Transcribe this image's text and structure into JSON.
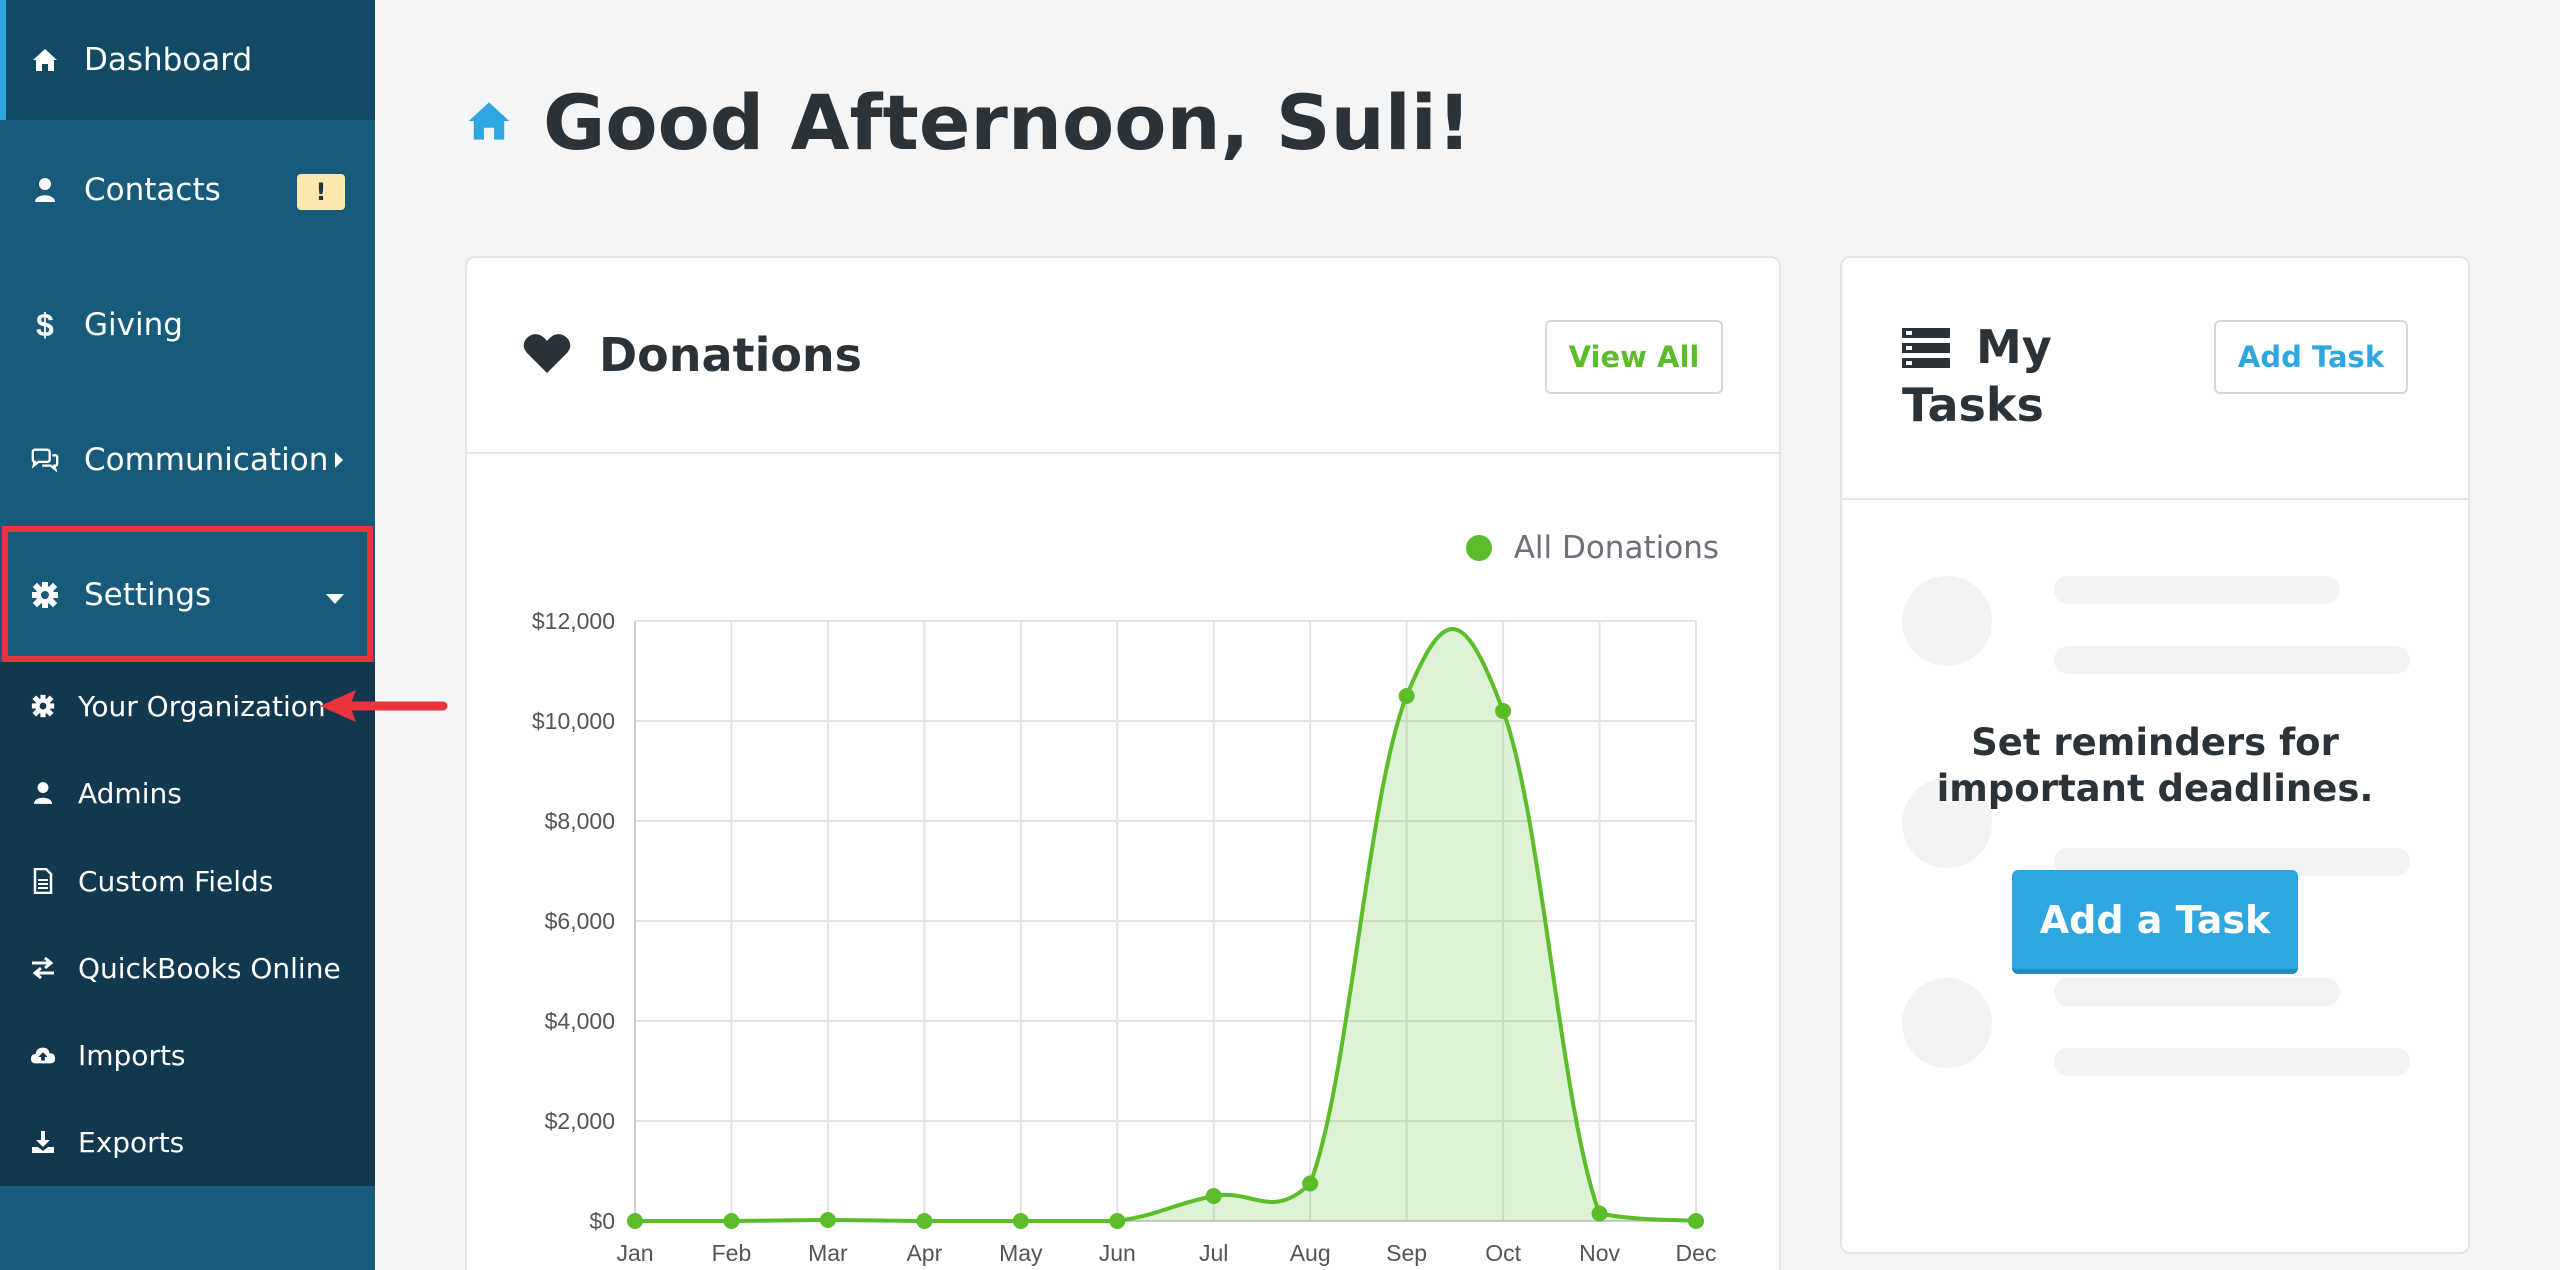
{
  "sidebar": {
    "items": [
      {
        "label": "Dashboard",
        "icon": "home-icon"
      },
      {
        "label": "Contacts",
        "icon": "user-icon",
        "badge": "!"
      },
      {
        "label": "Giving",
        "icon": "dollar-icon"
      },
      {
        "label": "Communication",
        "icon": "chat-icon"
      },
      {
        "label": "Settings",
        "icon": "gear-icon"
      }
    ],
    "submenu": [
      {
        "label": "Your Organization",
        "icon": "gear-icon"
      },
      {
        "label": "Admins",
        "icon": "user-icon"
      },
      {
        "label": "Custom Fields",
        "icon": "document-icon"
      },
      {
        "label": "QuickBooks Online",
        "icon": "exchange-icon"
      },
      {
        "label": "Imports",
        "icon": "cloud-upload-icon"
      },
      {
        "label": "Exports",
        "icon": "download-icon"
      }
    ]
  },
  "header": {
    "greeting": "Good Afternoon, Suli!"
  },
  "donations": {
    "title": "Donations",
    "view_all_label": "View All",
    "legend": "All Donations"
  },
  "tasks": {
    "title_line1": "My",
    "title_line2": "Tasks",
    "add_task_label": "Add Task",
    "message_line1": "Set reminders for",
    "message_line2": "important deadlines.",
    "cta_label": "Add a Task"
  },
  "colors": {
    "sidebar": "#175a7a",
    "sidebar_active": "#124a66",
    "submenu": "#11384e",
    "accent": "#2ea7e0",
    "series": "#5cbd2b",
    "highlight": "#e8343a"
  },
  "chart_data": {
    "type": "area",
    "categories": [
      "Jan",
      "Feb",
      "Mar",
      "Apr",
      "May",
      "Jun",
      "Jul",
      "Aug",
      "Sep",
      "Oct",
      "Nov",
      "Dec"
    ],
    "series": [
      {
        "name": "All Donations",
        "values": [
          0,
          0,
          20,
          0,
          0,
          0,
          500,
          750,
          10500,
          10200,
          150,
          0
        ]
      }
    ],
    "ylim": [
      0,
      12000
    ],
    "yticks": [
      0,
      2000,
      4000,
      6000,
      8000,
      10000,
      12000
    ],
    "ytick_labels": [
      "$0",
      "$2,000",
      "$4,000",
      "$6,000",
      "$8,000",
      "$10,000",
      "$12,000"
    ],
    "grid": true,
    "legend_position": "top-right"
  }
}
